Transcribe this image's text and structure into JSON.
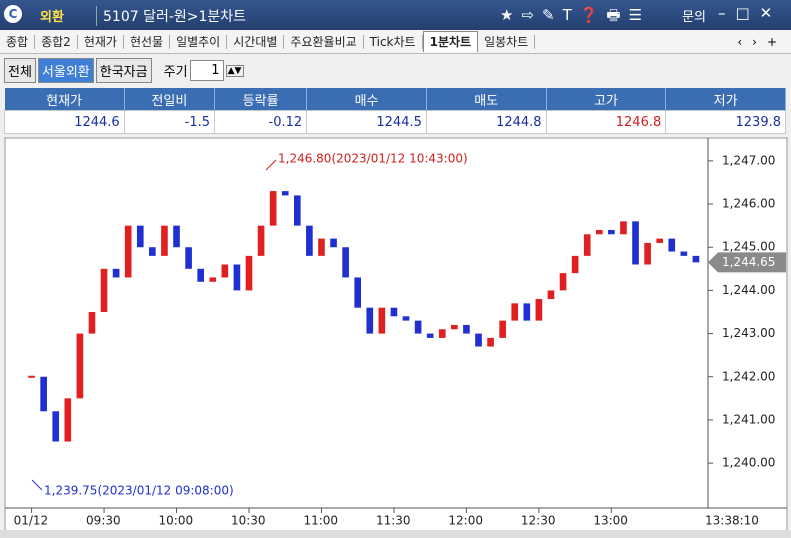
{
  "header": {
    "menu": "외환",
    "title": "5107 달러-원>1분차트",
    "help": "문의"
  },
  "tabs": [
    "종합",
    "종합2",
    "현재가",
    "현선물",
    "일별추이",
    "시간대별",
    "주요환율비교",
    "Tick차트",
    "1분차트",
    "일봉차트"
  ],
  "active_tab": 8,
  "toolbar": {
    "buttons": [
      "전체",
      "서울외환",
      "한국자금"
    ],
    "selected": 1,
    "period_label": "주기",
    "period": "1"
  },
  "quote": {
    "headers": [
      "현재가",
      "전일비",
      "등락률",
      "매수",
      "매도",
      "고가",
      "저가"
    ],
    "values": [
      "1244.6",
      "-1.5",
      "-0.12",
      "1244.5",
      "1244.8",
      "1246.8",
      "1239.8"
    ],
    "colors": [
      "#1a2fa0",
      "#1a2fa0",
      "#1a2fa0",
      "#1a2fa0",
      "#1a2fa0",
      "#d02020",
      "#1a2fa0"
    ]
  },
  "chart_data": {
    "type": "candlestick",
    "values": [
      1242.0,
      1241.2,
      1240.5,
      1241.5,
      1243.0,
      1243.5,
      1244.5,
      1244.3,
      1245.5,
      1245.0,
      1244.8,
      1245.5,
      1245.0,
      1244.5,
      1244.2,
      1244.3,
      1244.6,
      1244.0,
      1244.8,
      1245.5,
      1246.3,
      1246.2,
      1245.5,
      1244.8,
      1245.2,
      1245.0,
      1244.3,
      1243.6,
      1243.0,
      1243.6,
      1243.4,
      1243.3,
      1243.0,
      1242.9,
      1243.1,
      1243.2,
      1243.0,
      1242.7,
      1242.9,
      1243.3,
      1243.7,
      1243.3,
      1243.8,
      1244.0,
      1244.4,
      1244.8,
      1245.3,
      1245.4,
      1245.3,
      1245.6,
      1244.6,
      1245.1,
      1245.2,
      1244.9,
      1244.8,
      1244.65
    ],
    "up_color": "#e02020",
    "down_color": "#2030d0",
    "xlim": [
      -2.2,
      56
    ],
    "xticks": [
      {
        "value": 0,
        "label": "01/12"
      },
      {
        "value": 6,
        "label": "09:30"
      },
      {
        "value": 12,
        "label": "10:00"
      },
      {
        "value": 18,
        "label": "10:30"
      },
      {
        "value": 24,
        "label": "11:00"
      },
      {
        "value": 30,
        "label": "11:30"
      },
      {
        "value": 36,
        "label": "12:00"
      },
      {
        "value": 42,
        "label": "12:30"
      },
      {
        "value": 48,
        "label": "13:00"
      }
    ],
    "last_time": "13:38:10",
    "ylim": [
      1238.96,
      1247.53
    ],
    "yticks": [
      {
        "value": 1240,
        "label": "1,240.00"
      },
      {
        "value": 1241,
        "label": "1,241.00"
      },
      {
        "value": 1242,
        "label": "1,242.00"
      },
      {
        "value": 1243,
        "label": "1,243.00"
      },
      {
        "value": 1244,
        "label": "1,244.00"
      },
      {
        "value": 1245,
        "label": "1,245.00"
      },
      {
        "value": 1246,
        "label": "1,246.00"
      },
      {
        "value": 1247,
        "label": "1,247.00"
      }
    ],
    "current": {
      "value": 1244.65,
      "label": "1,244.65"
    },
    "annotations": {
      "high": "1,246.80(2023/01/12 10:43:00)",
      "low": "1,239.75(2023/01/12 09:08:00)"
    }
  }
}
